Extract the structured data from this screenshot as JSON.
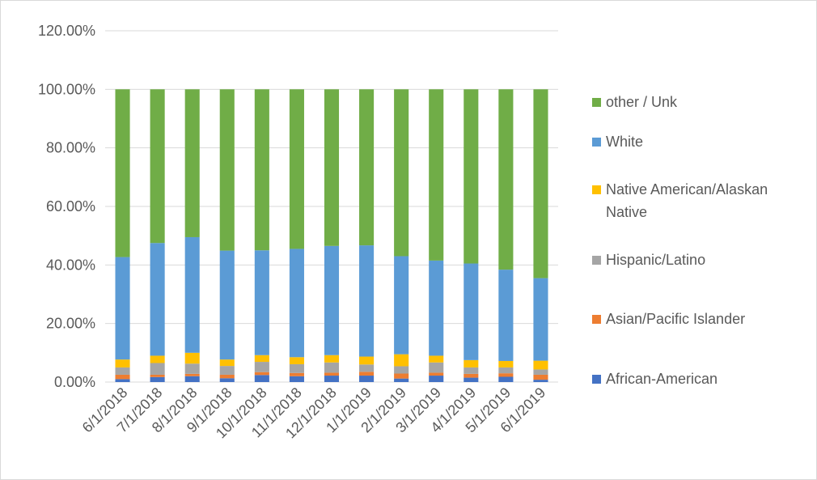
{
  "chart_data": {
    "type": "bar",
    "stacked": true,
    "title": "",
    "xlabel": "",
    "ylabel": "",
    "ylim": [
      0,
      1.2
    ],
    "yticks": [
      0,
      0.2,
      0.4,
      0.6,
      0.8,
      1.0,
      1.2
    ],
    "ytick_labels": [
      "0.00%",
      "20.00%",
      "40.00%",
      "60.00%",
      "80.00%",
      "100.00%",
      "120.00%"
    ],
    "grid": true,
    "legend_position": "right",
    "categories": [
      "6/1/2018",
      "7/1/2018",
      "8/1/2018",
      "9/1/2018",
      "10/1/2018",
      "11/1/2018",
      "12/1/2018",
      "1/1/2019",
      "2/1/2019",
      "3/1/2019",
      "4/1/2019",
      "5/1/2019",
      "6/1/2019"
    ],
    "series": [
      {
        "name": "African-American",
        "color": "#4472c4",
        "values": [
          0.01,
          0.017,
          0.02,
          0.013,
          0.024,
          0.02,
          0.022,
          0.022,
          0.012,
          0.022,
          0.015,
          0.018,
          0.008
        ]
      },
      {
        "name": "Asian/Pacific Islander",
        "color": "#ed7d31",
        "values": [
          0.015,
          0.008,
          0.008,
          0.012,
          0.01,
          0.011,
          0.01,
          0.013,
          0.017,
          0.01,
          0.013,
          0.012,
          0.017
        ]
      },
      {
        "name": "Hispanic/Latino",
        "color": "#a5a5a5",
        "values": [
          0.025,
          0.04,
          0.035,
          0.03,
          0.035,
          0.03,
          0.035,
          0.025,
          0.025,
          0.035,
          0.022,
          0.02,
          0.018
        ]
      },
      {
        "name": "Native American/Alaskan Native",
        "color": "#ffc000",
        "values": [
          0.027,
          0.025,
          0.037,
          0.022,
          0.023,
          0.024,
          0.025,
          0.027,
          0.041,
          0.023,
          0.025,
          0.022,
          0.03
        ]
      },
      {
        "name": "White",
        "color": "#5b9bd5",
        "values": [
          0.35,
          0.385,
          0.395,
          0.372,
          0.358,
          0.37,
          0.373,
          0.38,
          0.335,
          0.325,
          0.33,
          0.312,
          0.282
        ]
      },
      {
        "name": "other / Unk",
        "color": "#70ad47",
        "values": [
          0.573,
          0.525,
          0.505,
          0.551,
          0.55,
          0.545,
          0.535,
          0.533,
          0.57,
          0.585,
          0.595,
          0.616,
          0.645
        ]
      }
    ]
  }
}
